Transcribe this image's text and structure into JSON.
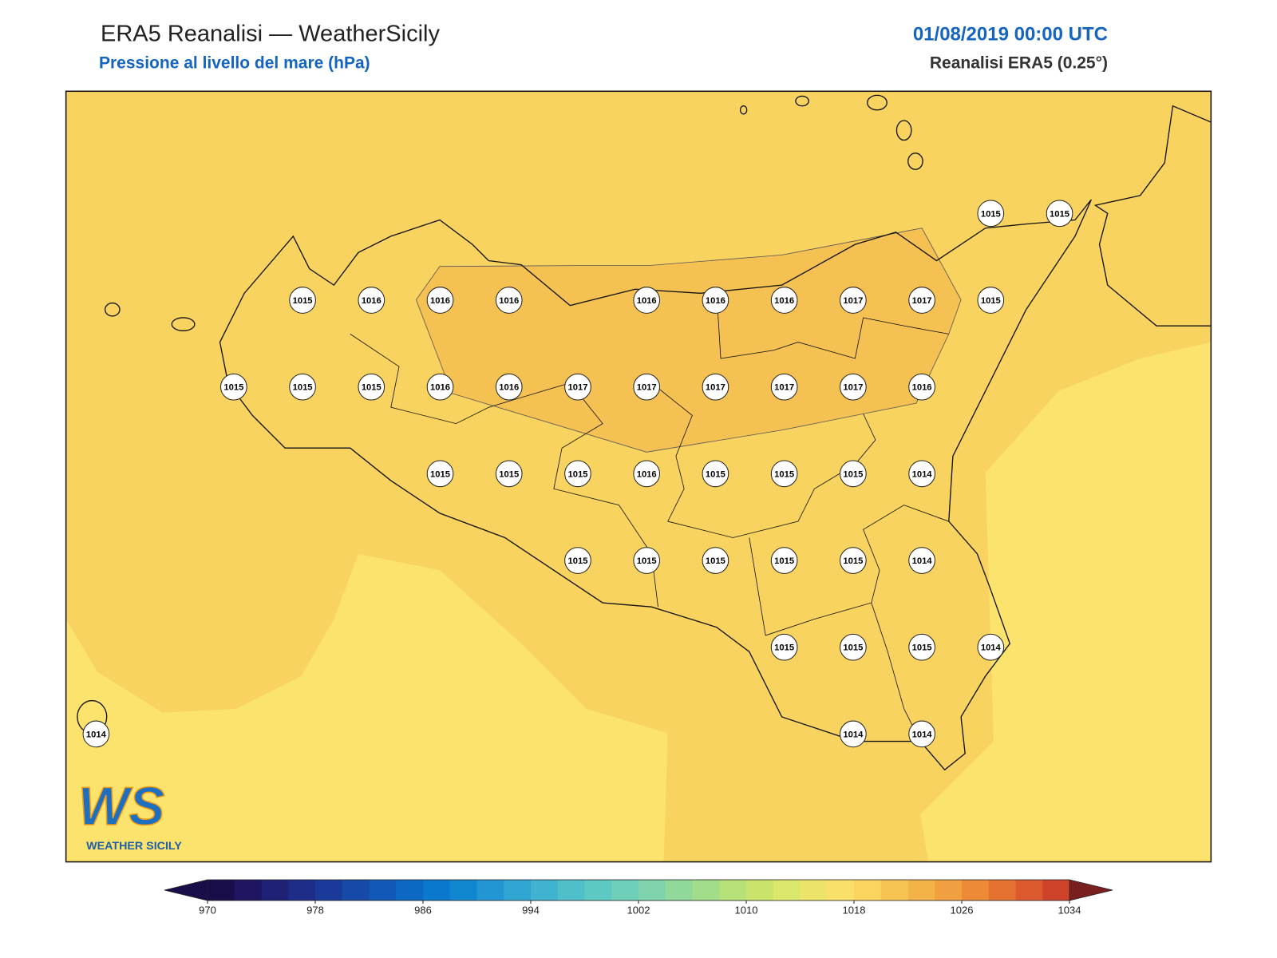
{
  "header": {
    "title": "ERA5 Reanalisi — WeatherSicily",
    "subtitle": "Pressione al livello del mare (hPa)",
    "date": "01/08/2019 00:00 UTC",
    "source": "Reanalisi ERA5 (0.25°)"
  },
  "stations": {
    "rows": [
      [
        null,
        null,
        null,
        null,
        null,
        null,
        null,
        null,
        null,
        null,
        null,
        null,
        null,
        1015,
        1015
      ],
      [
        null,
        null,
        null,
        1015,
        1016,
        1016,
        1016,
        null,
        1016,
        1016,
        1016,
        1017,
        1017,
        1015,
        null
      ],
      [
        null,
        null,
        1015,
        1015,
        1015,
        1016,
        1016,
        1017,
        1017,
        1017,
        1017,
        1017,
        1016,
        null,
        null
      ],
      [
        null,
        null,
        null,
        null,
        null,
        1015,
        1015,
        1015,
        1016,
        1015,
        1015,
        1015,
        1014,
        null,
        null
      ],
      [
        null,
        null,
        null,
        null,
        null,
        null,
        null,
        1015,
        1015,
        1015,
        1015,
        1015,
        1014,
        null,
        null
      ],
      [
        null,
        null,
        null,
        null,
        null,
        null,
        null,
        null,
        null,
        null,
        1015,
        1015,
        1015,
        1014,
        null
      ],
      [
        1014,
        null,
        null,
        null,
        null,
        null,
        null,
        null,
        null,
        null,
        null,
        1014,
        1014,
        null,
        null
      ]
    ]
  },
  "colorbar": {
    "ticks": [
      970,
      978,
      986,
      994,
      1002,
      1010,
      1018,
      1026,
      1034
    ],
    "colors": [
      "#1b0c4a",
      "#1e1660",
      "#1f2175",
      "#1d2d88",
      "#1a3a99",
      "#1749a8",
      "#1258b6",
      "#0c68c3",
      "#0a78cd",
      "#1287d1",
      "#2196d3",
      "#30a5d2",
      "#3fb3cf",
      "#4fbfca",
      "#5ec8c2",
      "#6ecfb8",
      "#7fd4ab",
      "#90d99b",
      "#a2dd8a",
      "#b5e178",
      "#c8e46a",
      "#dbe76d",
      "#ece36a",
      "#f8e06a",
      "#fbd45f",
      "#f7c453",
      "#f3b248",
      "#f0a040",
      "#ec8a38",
      "#e67232",
      "#dc5a2e",
      "#cf432b"
    ]
  },
  "logo": {
    "mark": "WS",
    "name": "WEATHER SICILY"
  }
}
